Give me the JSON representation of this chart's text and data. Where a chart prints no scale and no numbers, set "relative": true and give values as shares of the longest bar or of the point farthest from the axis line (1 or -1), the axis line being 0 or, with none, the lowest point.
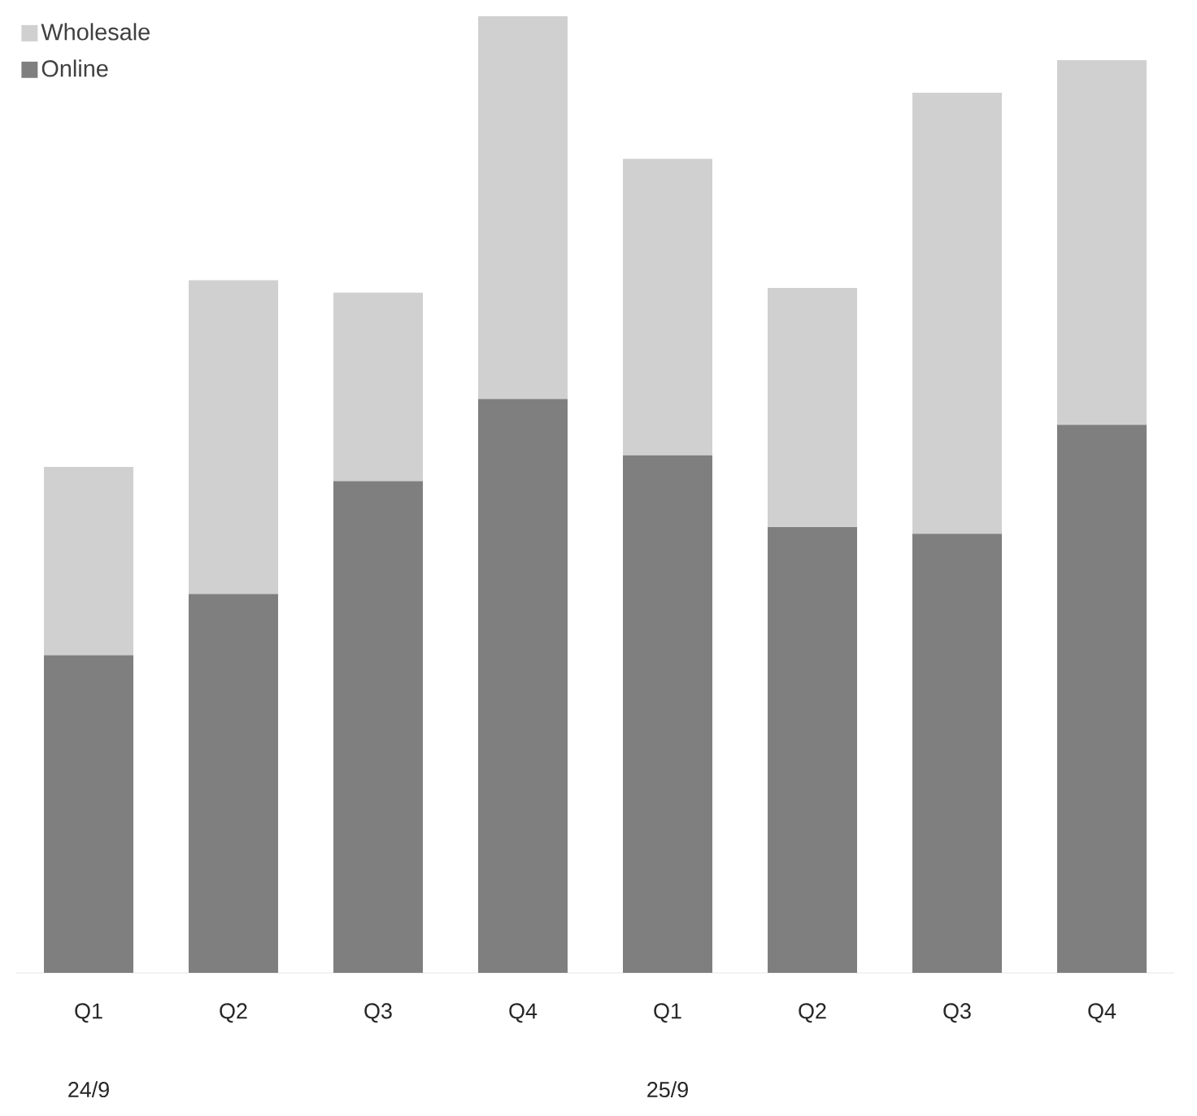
{
  "chart_data": {
    "type": "bar",
    "stacked": true,
    "relative": true,
    "legend": "top left",
    "categories": [
      "Q1",
      "Q2",
      "Q3",
      "Q4",
      "Q1",
      "Q2",
      "Q3",
      "Q4"
    ],
    "series": [
      {
        "name": "Online",
        "color": "#7f7f7f",
        "values": [
          0.332,
          0.396,
          0.514,
          0.6,
          0.541,
          0.466,
          0.459,
          0.573
        ]
      },
      {
        "name": "Wholesale",
        "color": "#d0d0d0",
        "values": [
          0.197,
          0.328,
          0.197,
          0.4,
          0.31,
          0.25,
          0.461,
          0.381
        ]
      }
    ],
    "annotations": [
      "24/9",
      "25/9"
    ]
  }
}
